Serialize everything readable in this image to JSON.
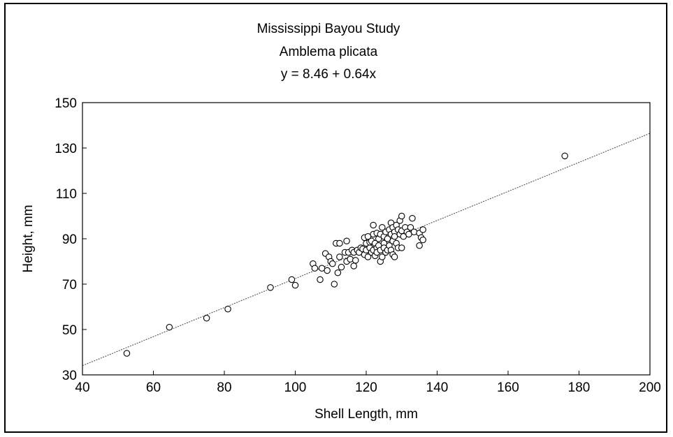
{
  "chart_data": {
    "type": "scatter",
    "title": "Mississippi Bayou Study",
    "subtitle": "Amblema plicata",
    "equation": "y = 8.46 + 0.64x",
    "xlabel": "Shell Length, mm",
    "ylabel": "Height, mm",
    "xlim": [
      40,
      200
    ],
    "ylim": [
      30,
      150
    ],
    "xticks": [
      40,
      60,
      80,
      100,
      120,
      140,
      160,
      180,
      200
    ],
    "yticks": [
      30,
      50,
      70,
      90,
      110,
      130,
      150
    ],
    "grid": false,
    "regression": {
      "intercept": 8.46,
      "slope": 0.64
    },
    "points": [
      [
        52.5,
        39.5
      ],
      [
        64.5,
        51
      ],
      [
        75,
        55
      ],
      [
        81,
        59
      ],
      [
        93,
        68.5
      ],
      [
        99,
        72
      ],
      [
        100,
        69.5
      ],
      [
        105,
        79
      ],
      [
        105.5,
        77
      ],
      [
        107,
        72
      ],
      [
        107.5,
        77
      ],
      [
        108.5,
        83.5
      ],
      [
        109,
        76
      ],
      [
        109.5,
        82
      ],
      [
        110,
        80
      ],
      [
        110.5,
        79
      ],
      [
        111,
        70
      ],
      [
        111.5,
        88
      ],
      [
        112,
        75
      ],
      [
        112.5,
        82
      ],
      [
        112.5,
        88
      ],
      [
        113,
        77.5
      ],
      [
        114,
        84
      ],
      [
        114.5,
        80
      ],
      [
        114.5,
        89
      ],
      [
        115,
        84
      ],
      [
        115.5,
        81
      ],
      [
        116,
        85
      ],
      [
        116.5,
        78
      ],
      [
        116.5,
        84
      ],
      [
        117,
        80.5
      ],
      [
        117.5,
        85
      ],
      [
        118,
        84
      ],
      [
        118.5,
        86
      ],
      [
        119,
        85.5
      ],
      [
        119.5,
        90.5
      ],
      [
        119.5,
        83
      ],
      [
        120,
        88
      ],
      [
        120,
        85
      ],
      [
        120.5,
        82
      ],
      [
        120.5,
        91
      ],
      [
        121,
        86
      ],
      [
        121,
        88.5
      ],
      [
        121.5,
        84
      ],
      [
        121.5,
        89
      ],
      [
        122,
        92
      ],
      [
        122,
        85
      ],
      [
        122,
        96
      ],
      [
        122.5,
        82.5
      ],
      [
        122.5,
        88
      ],
      [
        123,
        92.5
      ],
      [
        123,
        86
      ],
      [
        123,
        84
      ],
      [
        123.5,
        90
      ],
      [
        123.5,
        87
      ],
      [
        124,
        92
      ],
      [
        124,
        85
      ],
      [
        124,
        80
      ],
      [
        124.5,
        95
      ],
      [
        124.5,
        82
      ],
      [
        125,
        91
      ],
      [
        125,
        88
      ],
      [
        125,
        86
      ],
      [
        125.5,
        93
      ],
      [
        125.5,
        84
      ],
      [
        126,
        90
      ],
      [
        126,
        85
      ],
      [
        126.5,
        94
      ],
      [
        126.5,
        87
      ],
      [
        127,
        92
      ],
      [
        127,
        85
      ],
      [
        127,
        97
      ],
      [
        127.5,
        95
      ],
      [
        127.5,
        89
      ],
      [
        127.5,
        83
      ],
      [
        128,
        93
      ],
      [
        128,
        91
      ],
      [
        128,
        82
      ],
      [
        128.5,
        96
      ],
      [
        128.5,
        88
      ],
      [
        129,
        94
      ],
      [
        129,
        86
      ],
      [
        129.5,
        98
      ],
      [
        129.5,
        92
      ],
      [
        130,
        100
      ],
      [
        130,
        93.5
      ],
      [
        130,
        86
      ],
      [
        130.5,
        91
      ],
      [
        131,
        95
      ],
      [
        131.5,
        93
      ],
      [
        132,
        92
      ],
      [
        132.5,
        95
      ],
      [
        133,
        99
      ],
      [
        133.5,
        93
      ],
      [
        135,
        92.5
      ],
      [
        135,
        87
      ],
      [
        135.5,
        90.5
      ],
      [
        136,
        94
      ],
      [
        136,
        89.5
      ],
      [
        176,
        126.5
      ]
    ]
  }
}
